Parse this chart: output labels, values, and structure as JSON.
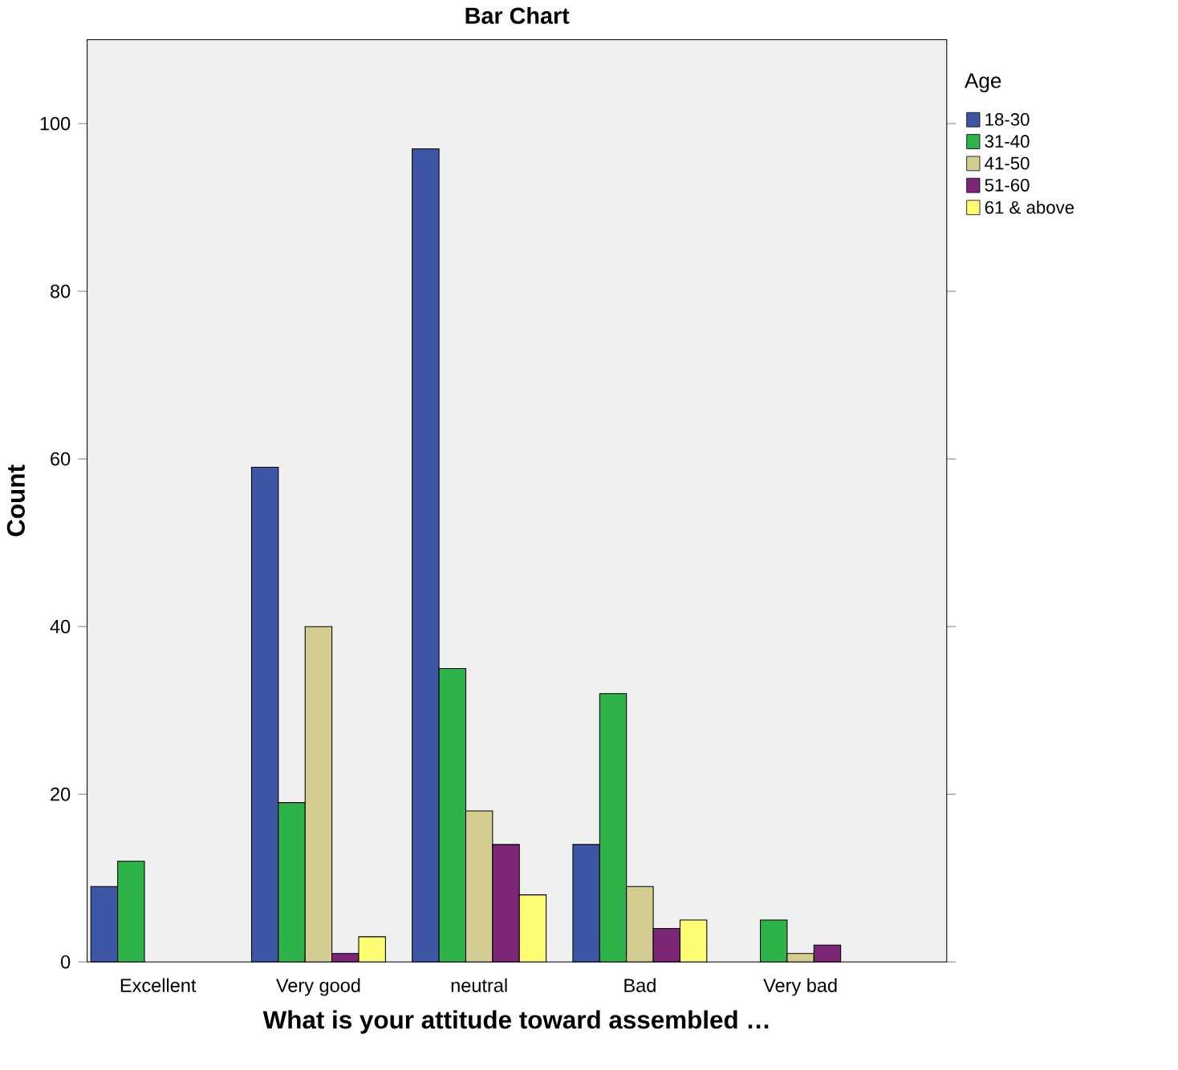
{
  "chart_data": {
    "type": "bar",
    "title": "Bar Chart",
    "xlabel": "What is your attitude toward assembled …",
    "ylabel": "Count",
    "legend_title": "Age",
    "categories": [
      "Excellent",
      "Very good",
      "neutral",
      "Bad",
      "Very bad"
    ],
    "series": [
      {
        "name": "18-30",
        "color": "#3d56a6",
        "values": [
          9,
          59,
          97,
          14,
          null
        ]
      },
      {
        "name": "31-40",
        "color": "#2db34a",
        "values": [
          12,
          19,
          35,
          32,
          5
        ]
      },
      {
        "name": "41-50",
        "color": "#d4cd91",
        "values": [
          null,
          40,
          18,
          9,
          1
        ]
      },
      {
        "name": "51-60",
        "color": "#7b2776",
        "values": [
          null,
          1,
          14,
          4,
          2
        ]
      },
      {
        "name": "61 & above",
        "color": "#fdfd73",
        "values": [
          null,
          3,
          8,
          5,
          null
        ]
      }
    ],
    "ylim": [
      0,
      110
    ],
    "yticks": [
      0,
      20,
      40,
      60,
      80,
      100
    ],
    "grid": false,
    "legend": "right"
  }
}
